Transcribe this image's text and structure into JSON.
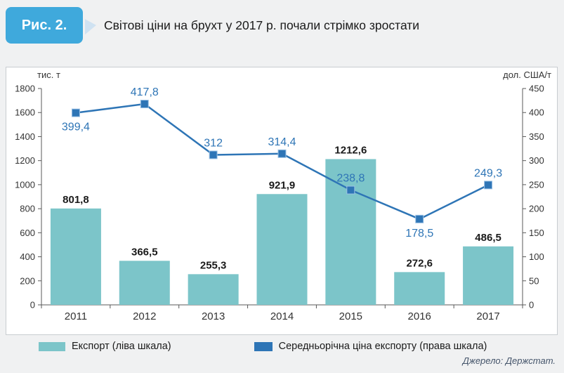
{
  "header": {
    "figure_label": "Рис. 2.",
    "title": "Світові ціни на брухт у 2017 р. почали стрімко зростати"
  },
  "chart_data": {
    "type": "bar+line combo",
    "categories": [
      "2011",
      "2012",
      "2013",
      "2014",
      "2015",
      "2016",
      "2017"
    ],
    "series": [
      {
        "name": "Експорт (ліва шкала)",
        "type": "bar",
        "axis": "left",
        "values": [
          801.8,
          366.5,
          255.3,
          921.9,
          1212.6,
          272.6,
          486.5
        ],
        "labels": [
          "801,8",
          "366,5",
          "255,3",
          "921,9",
          "1212,6",
          "272,6",
          "486,5"
        ],
        "color": "#7cc5c9"
      },
      {
        "name": "Середньорічна ціна експорту (права шкала)",
        "type": "line",
        "axis": "right",
        "values": [
          399.4,
          417.8,
          312,
          314.4,
          238.8,
          178.5,
          249.3
        ],
        "labels": [
          "399,4",
          "417,8",
          "312",
          "314,4",
          "238,8",
          "178,5",
          "249,3"
        ],
        "label_positions": [
          "below",
          "above",
          "above",
          "above",
          "above",
          "below",
          "above"
        ],
        "color": "#2e75b6",
        "marker": "square",
        "marker_stroke": "#9cc2e5"
      }
    ],
    "left_axis": {
      "title": "тис. т",
      "min": 0,
      "max": 1800,
      "step": 200
    },
    "right_axis": {
      "title": "дол. США/т",
      "min": 0,
      "max": 450,
      "step": 50
    },
    "grid": false,
    "legend_position": "bottom"
  },
  "colors": {
    "badge_bg": "#3fa9dc",
    "axis_line": "#595959",
    "bar_label": "#1a1a1a",
    "tick_label": "#333333",
    "panel_border": "#c8ccd0"
  },
  "source": "Джерело: Держстат."
}
